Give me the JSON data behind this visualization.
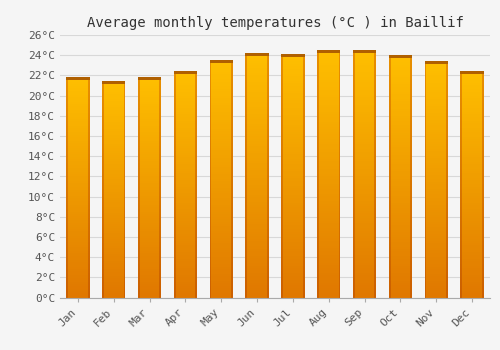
{
  "title": "Average monthly temperatures (°C ) in Baillif",
  "months": [
    "Jan",
    "Feb",
    "Mar",
    "Apr",
    "May",
    "Jun",
    "Jul",
    "Aug",
    "Sep",
    "Oct",
    "Nov",
    "Dec"
  ],
  "temperatures": [
    21.8,
    21.4,
    21.8,
    22.4,
    23.5,
    24.2,
    24.1,
    24.5,
    24.5,
    24.0,
    23.4,
    22.4
  ],
  "bar_color_center": "#FFB300",
  "bar_color_edge": "#E07800",
  "background_color": "#f5f5f5",
  "grid_color": "#d8d8d8",
  "ylim": [
    0,
    26
  ],
  "yticks": [
    0,
    2,
    4,
    6,
    8,
    10,
    12,
    14,
    16,
    18,
    20,
    22,
    24,
    26
  ],
  "title_fontsize": 10,
  "tick_fontsize": 8,
  "bar_width": 0.65
}
